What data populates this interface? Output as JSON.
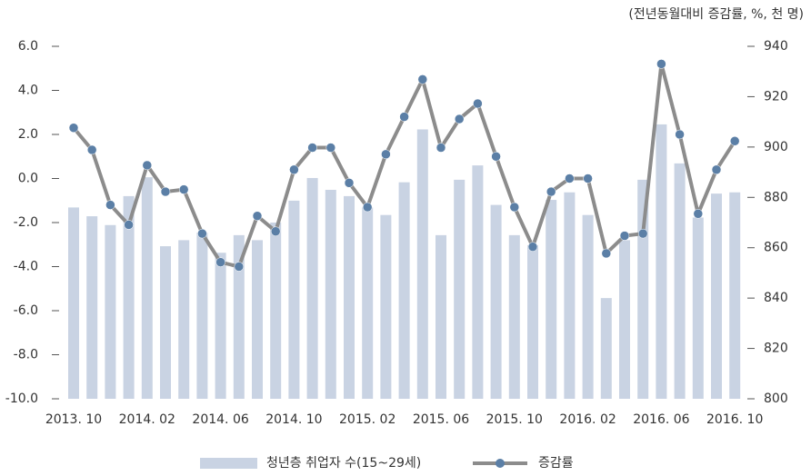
{
  "chart_data": {
    "type": "bar_line",
    "annotation": "(전년동월대비 증감률, %, 천 명)",
    "categories": [
      "2013. 10",
      null,
      null,
      null,
      "2014. 02",
      null,
      null,
      null,
      "2014. 06",
      null,
      null,
      null,
      "2014. 10",
      null,
      null,
      null,
      "2015. 02",
      null,
      null,
      null,
      "2015. 06",
      null,
      null,
      null,
      "2015. 10",
      null,
      null,
      null,
      "2016. 02",
      null,
      null,
      null,
      "2016. 06",
      null,
      null,
      null,
      "2016. 10"
    ],
    "series": [
      {
        "name": "청년층 취업자 수(15~29세)",
        "color": "#c9d3e3",
        "axis": "y2",
        "kind": "bar",
        "values": [
          876,
          872.5,
          869,
          880.5,
          888,
          860.6,
          863,
          866,
          858,
          865,
          863,
          870,
          878.7,
          887.7,
          883,
          880.5,
          876,
          873,
          886,
          907,
          865,
          887,
          892.7,
          877,
          865,
          861,
          879,
          882,
          873,
          840,
          863,
          887,
          909,
          893.5,
          872,
          881.5,
          882
        ]
      },
      {
        "name": "증감률",
        "color": "#8c8c8c",
        "marker_color": "#5b7fa6",
        "axis": "y",
        "kind": "line",
        "values": [
          2.3,
          1.3,
          -1.2,
          -2.1,
          0.6,
          -0.6,
          -0.5,
          -2.5,
          -3.8,
          -4.0,
          -1.7,
          -2.4,
          0.4,
          1.4,
          1.4,
          -0.2,
          -1.3,
          1.1,
          2.8,
          4.5,
          1.4,
          2.7,
          3.4,
          1.0,
          -1.3,
          -3.1,
          -0.6,
          0.0,
          0.0,
          -3.4,
          -2.6,
          -2.5,
          5.2,
          2.0,
          -1.6,
          0.4,
          1.7
        ]
      }
    ],
    "ylim": [
      -10,
      6
    ],
    "yticks": [
      {
        "value": -10,
        "label": "-10.0"
      },
      {
        "value": -8,
        "label": "-8.0"
      },
      {
        "value": -6,
        "label": "-6.0"
      },
      {
        "value": -4,
        "label": "-4.0"
      },
      {
        "value": -2,
        "label": "-2.0"
      },
      {
        "value": 0,
        "label": "0.0"
      },
      {
        "value": 2,
        "label": "2.0"
      },
      {
        "value": 4,
        "label": "4.0"
      },
      {
        "value": 6,
        "label": "6.0"
      }
    ],
    "y2lim": [
      800,
      940
    ],
    "y2ticks": [
      800,
      820,
      840,
      860,
      880,
      900,
      920,
      940
    ],
    "grid": false,
    "legend": "bottom"
  }
}
